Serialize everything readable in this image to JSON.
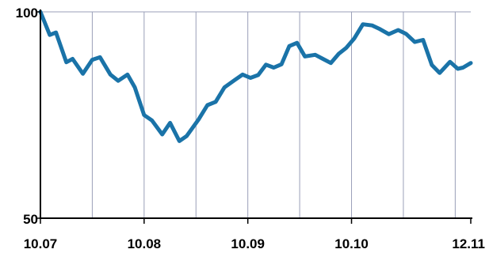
{
  "chart_data": {
    "type": "line",
    "x_labels": [
      "10.07",
      "10.08",
      "10.09",
      "10.10",
      "12.11"
    ],
    "x_label_positions": [
      0,
      2,
      4,
      6,
      8.3
    ],
    "y_tick_labels": [
      "100",
      "50"
    ],
    "ylim": [
      50,
      100
    ],
    "xlim": [
      0,
      8.3
    ],
    "grid": true,
    "vertical_gridlines_at": [
      1,
      2,
      3,
      4,
      5,
      6,
      7,
      8
    ],
    "series": [
      {
        "color": "#1a73a8",
        "x": [
          0,
          0.18,
          0.3,
          0.5,
          0.62,
          0.82,
          1.0,
          1.15,
          1.35,
          1.5,
          1.68,
          1.82,
          2.0,
          2.15,
          2.35,
          2.5,
          2.68,
          2.82,
          3.05,
          3.22,
          3.38,
          3.55,
          3.75,
          3.9,
          4.05,
          4.2,
          4.35,
          4.5,
          4.65,
          4.8,
          4.95,
          5.1,
          5.3,
          5.45,
          5.6,
          5.75,
          5.9,
          6.05,
          6.22,
          6.4,
          6.55,
          6.72,
          6.9,
          7.05,
          7.22,
          7.38,
          7.55,
          7.7,
          7.9,
          8.05,
          8.15,
          8.3
        ],
        "y": [
          100,
          94.4,
          95.0,
          87.8,
          88.6,
          85.0,
          88.4,
          89.0,
          84.8,
          83.3,
          84.8,
          81.7,
          75.0,
          73.7,
          70.3,
          73.1,
          68.7,
          69.9,
          73.9,
          77.4,
          78.2,
          81.7,
          83.5,
          84.8,
          84.0,
          84.7,
          87.2,
          86.5,
          87.3,
          91.7,
          92.5,
          89.2,
          89.6,
          88.6,
          87.6,
          89.8,
          91.3,
          93.5,
          97.0,
          96.7,
          95.8,
          94.6,
          95.6,
          94.7,
          92.7,
          93.2,
          87.1,
          85.2,
          87.9,
          86.2,
          86.5,
          87.6
        ]
      }
    ]
  }
}
